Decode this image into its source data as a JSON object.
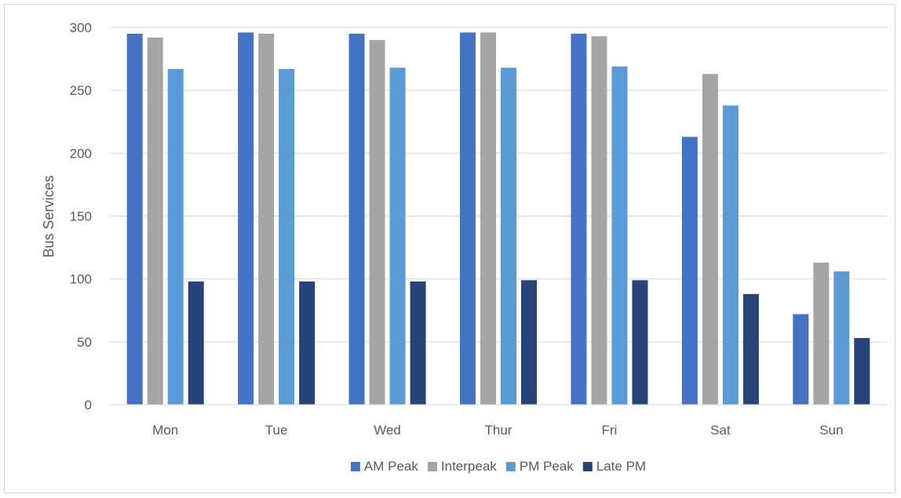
{
  "chart_data": {
    "type": "bar",
    "title": "",
    "xlabel": "",
    "ylabel": "Bus Services",
    "ylim": [
      0,
      300
    ],
    "yticks": [
      0,
      50,
      100,
      150,
      200,
      250,
      300
    ],
    "grid": true,
    "legend_position": "bottom",
    "categories": [
      "Mon",
      "Tue",
      "Wed",
      "Thur",
      "Fri",
      "Sat",
      "Sun"
    ],
    "series": [
      {
        "name": "AM Peak",
        "color": "#4472c4",
        "values": [
          295,
          296,
          295,
          296,
          295,
          213,
          72
        ]
      },
      {
        "name": "Interpeak",
        "color": "#a5a5a5",
        "values": [
          292,
          295,
          290,
          296,
          293,
          263,
          113
        ]
      },
      {
        "name": "PM Peak",
        "color": "#5b9bd5",
        "values": [
          267,
          267,
          268,
          268,
          269,
          238,
          106
        ]
      },
      {
        "name": "Late PM",
        "color": "#264478",
        "values": [
          98,
          98,
          98,
          99,
          99,
          88,
          53
        ]
      }
    ]
  }
}
